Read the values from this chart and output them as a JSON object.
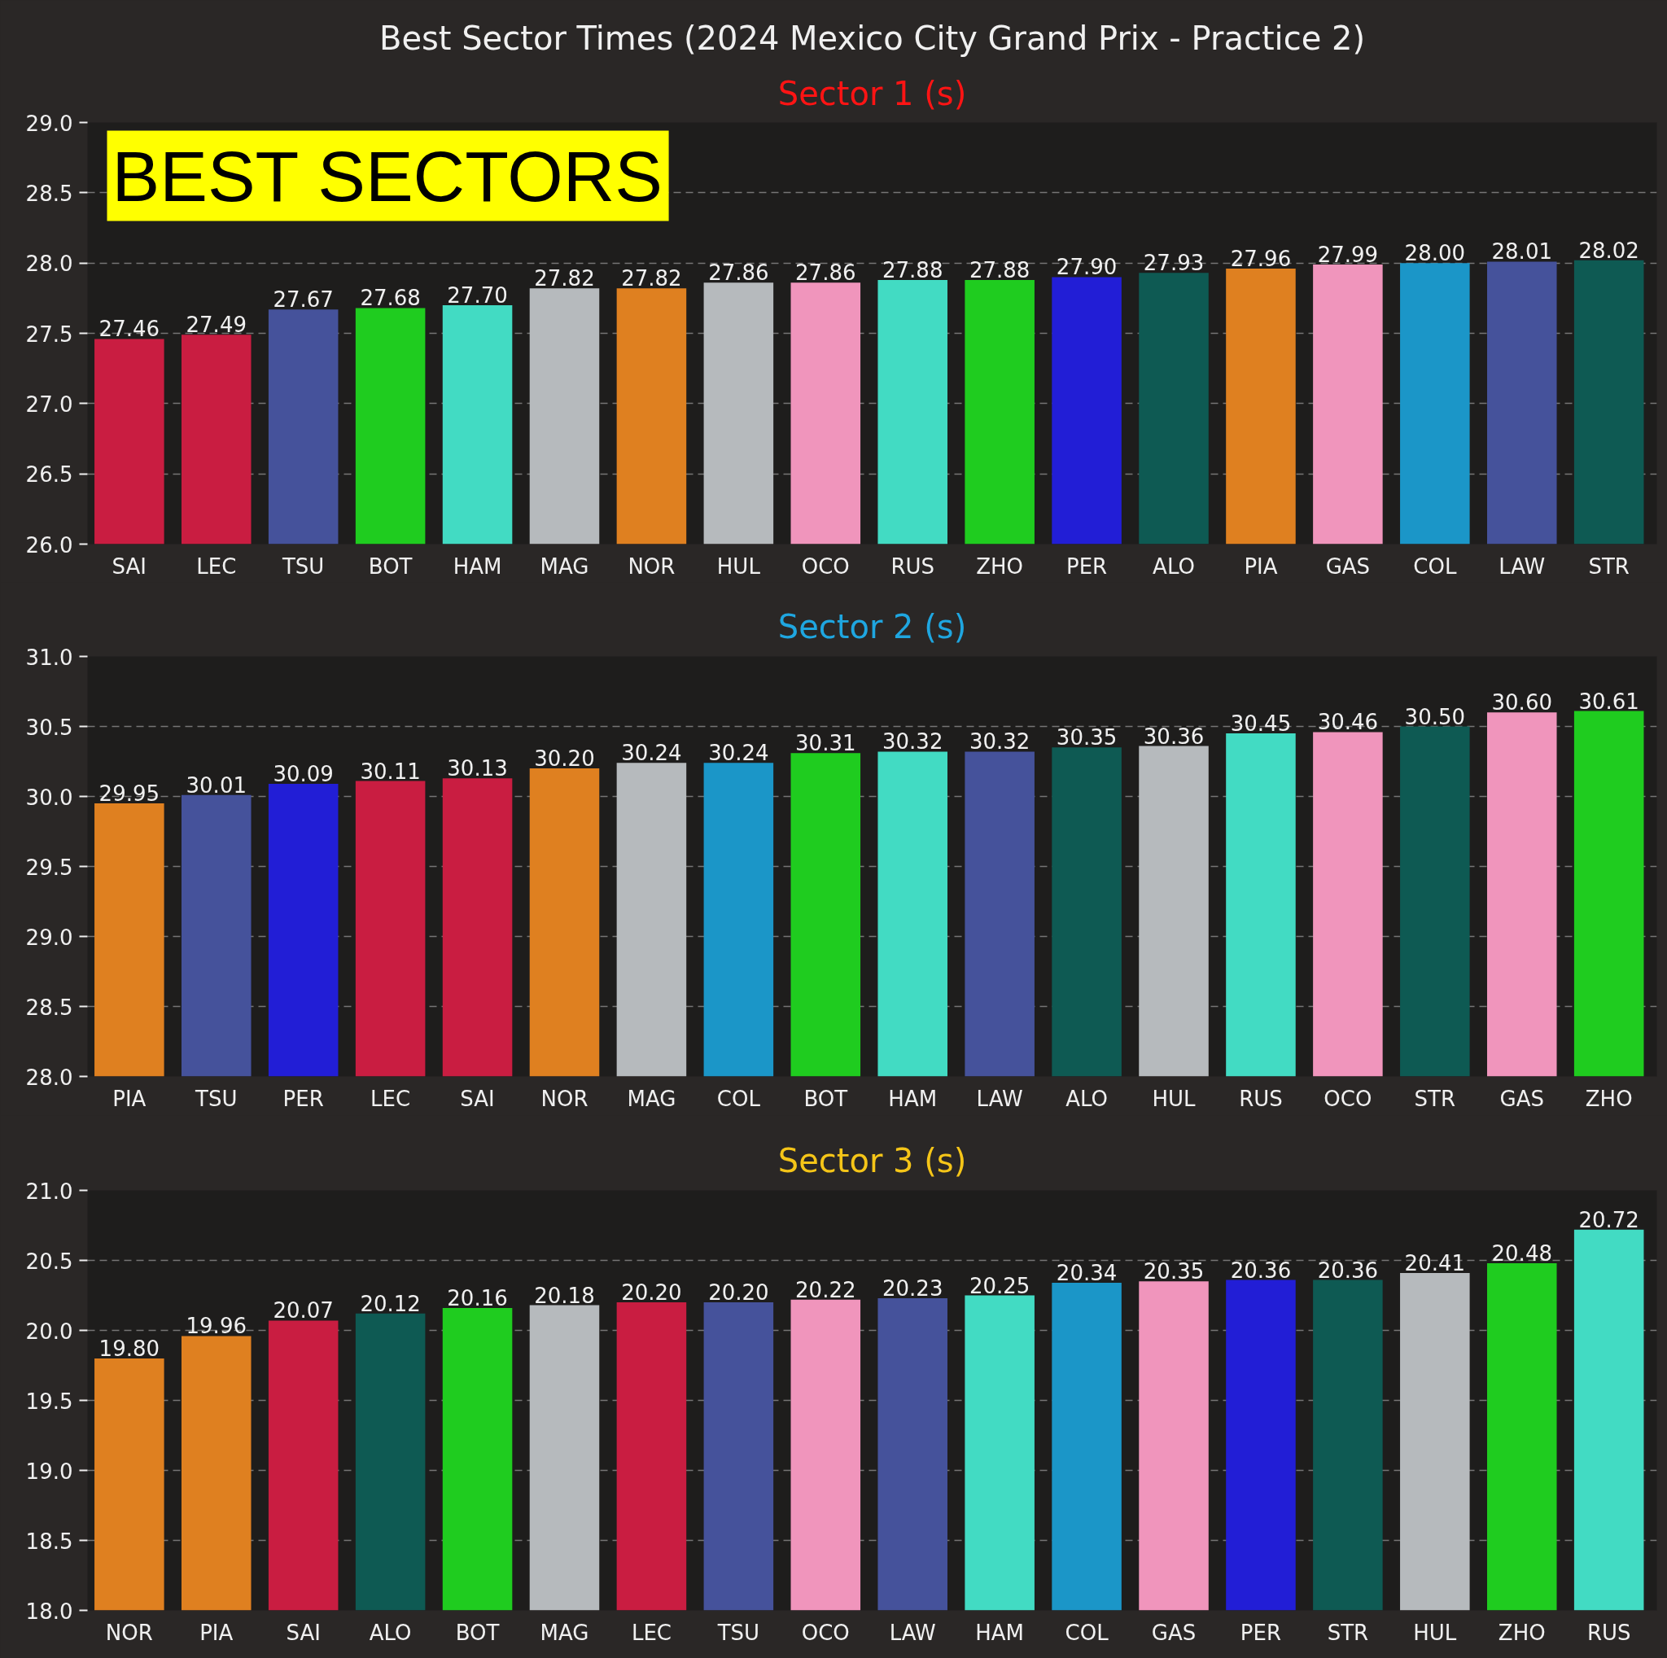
{
  "chart_data": [
    {
      "type": "bar",
      "title": "Best Sector Times (2024 Mexico City Grand Prix - Practice 2)",
      "subtitle": "Sector 1 (s)",
      "categories": [
        "SAI",
        "LEC",
        "TSU",
        "BOT",
        "HAM",
        "MAG",
        "NOR",
        "HUL",
        "OCO",
        "RUS",
        "ZHO",
        "PER",
        "ALO",
        "PIA",
        "GAS",
        "COL",
        "LAW",
        "STR"
      ],
      "values": [
        27.46,
        27.49,
        27.67,
        27.68,
        27.7,
        27.82,
        27.82,
        27.86,
        27.86,
        27.88,
        27.88,
        27.9,
        27.93,
        27.96,
        27.99,
        28.0,
        28.01,
        28.02
      ],
      "value_labels": [
        "27.46",
        "27.49",
        "27.67",
        "27.68",
        "27.70",
        "27.82",
        "27.82",
        "27.86",
        "27.86",
        "27.88",
        "27.88",
        "27.90",
        "27.93",
        "27.96",
        "27.99",
        "28.00",
        "28.01",
        "28.02"
      ],
      "colors": [
        "#c91d41",
        "#c91d41",
        "#45529b",
        "#1fcc1f",
        "#42dbc3",
        "#b6babd",
        "#df8020",
        "#b6babd",
        "#f095bc",
        "#42dbc3",
        "#1fcc1f",
        "#221ed6",
        "#0e5a53",
        "#df8020",
        "#f095bc",
        "#1b96c8",
        "#45529b",
        "#0e5a53"
      ],
      "ylim": [
        26,
        29
      ],
      "yticks": [
        {
          "value": 26,
          "label": "26.0"
        },
        {
          "value": 26.5,
          "label": "26.5"
        },
        {
          "value": 27,
          "label": "27.0"
        },
        {
          "value": 27.5,
          "label": "27.5"
        },
        {
          "value": 28,
          "label": "28.0"
        },
        {
          "value": 28.5,
          "label": "28.5"
        },
        {
          "value": 29,
          "label": "29.0"
        }
      ],
      "grid": "y",
      "annotations": [
        "BEST SECTORS"
      ]
    },
    {
      "type": "bar",
      "title": "Sector 2 (s)",
      "categories": [
        "PIA",
        "TSU",
        "PER",
        "LEC",
        "SAI",
        "NOR",
        "MAG",
        "COL",
        "BOT",
        "HAM",
        "LAW",
        "ALO",
        "HUL",
        "RUS",
        "OCO",
        "STR",
        "GAS",
        "ZHO"
      ],
      "values": [
        29.95,
        30.01,
        30.09,
        30.11,
        30.13,
        30.2,
        30.24,
        30.24,
        30.31,
        30.32,
        30.32,
        30.35,
        30.36,
        30.45,
        30.46,
        30.5,
        30.6,
        30.61
      ],
      "value_labels": [
        "29.95",
        "30.01",
        "30.09",
        "30.11",
        "30.13",
        "30.20",
        "30.24",
        "30.24",
        "30.31",
        "30.32",
        "30.32",
        "30.35",
        "30.36",
        "30.45",
        "30.46",
        "30.50",
        "30.60",
        "30.61"
      ],
      "colors": [
        "#df8020",
        "#45529b",
        "#221ed6",
        "#c91d41",
        "#c91d41",
        "#df8020",
        "#b6babd",
        "#1b96c8",
        "#1fcc1f",
        "#42dbc3",
        "#45529b",
        "#0e5a53",
        "#b6babd",
        "#42dbc3",
        "#f095bc",
        "#0e5a53",
        "#f095bc",
        "#1fcc1f"
      ],
      "ylim": [
        28,
        31
      ],
      "yticks": [
        {
          "value": 28,
          "label": "28.0"
        },
        {
          "value": 28.5,
          "label": "28.5"
        },
        {
          "value": 29,
          "label": "29.0"
        },
        {
          "value": 29.5,
          "label": "29.5"
        },
        {
          "value": 30,
          "label": "30.0"
        },
        {
          "value": 30.5,
          "label": "30.5"
        },
        {
          "value": 31,
          "label": "31.0"
        }
      ],
      "grid": "y"
    },
    {
      "type": "bar",
      "title": "Sector 3 (s)",
      "categories": [
        "NOR",
        "PIA",
        "SAI",
        "ALO",
        "BOT",
        "MAG",
        "LEC",
        "TSU",
        "OCO",
        "LAW",
        "HAM",
        "COL",
        "GAS",
        "PER",
        "STR",
        "HUL",
        "ZHO",
        "RUS"
      ],
      "values": [
        19.8,
        19.96,
        20.07,
        20.12,
        20.16,
        20.18,
        20.2,
        20.2,
        20.22,
        20.23,
        20.25,
        20.34,
        20.35,
        20.36,
        20.36,
        20.41,
        20.48,
        20.72
      ],
      "value_labels": [
        "19.80",
        "19.96",
        "20.07",
        "20.12",
        "20.16",
        "20.18",
        "20.20",
        "20.20",
        "20.22",
        "20.23",
        "20.25",
        "20.34",
        "20.35",
        "20.36",
        "20.36",
        "20.41",
        "20.48",
        "20.72"
      ],
      "colors": [
        "#df8020",
        "#df8020",
        "#c91d41",
        "#0e5a53",
        "#1fcc1f",
        "#b6babd",
        "#c91d41",
        "#45529b",
        "#f095bc",
        "#45529b",
        "#42dbc3",
        "#1b96c8",
        "#f095bc",
        "#221ed6",
        "#0e5a53",
        "#b6babd",
        "#1fcc1f",
        "#42dbc3"
      ],
      "ylim": [
        18,
        21
      ],
      "yticks": [
        {
          "value": 18,
          "label": "18.0"
        },
        {
          "value": 18.5,
          "label": "18.5"
        },
        {
          "value": 19,
          "label": "19.0"
        },
        {
          "value": 19.5,
          "label": "19.5"
        },
        {
          "value": 20,
          "label": "20.0"
        },
        {
          "value": 20.5,
          "label": "20.5"
        },
        {
          "value": 21,
          "label": "21.0"
        }
      ],
      "grid": "y"
    }
  ]
}
